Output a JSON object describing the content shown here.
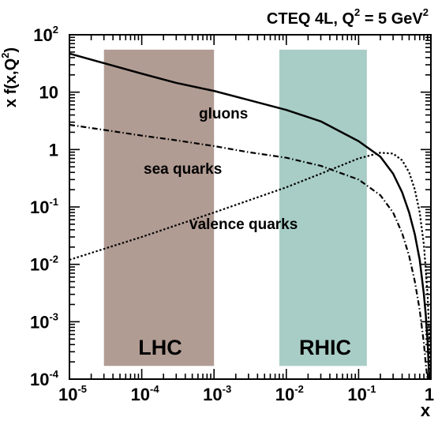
{
  "chart_data": {
    "type": "line",
    "title": {
      "main": "CTEQ 4L,  Q",
      "sup1": "2",
      "mid": " = 5 GeV",
      "sup2": "2"
    },
    "ylabel": {
      "main": "x f(x,Q",
      "sup": "2",
      "end": ")"
    },
    "xlabel": "x",
    "xscale": "log",
    "yscale": "log",
    "xlim": [
      1e-05,
      1
    ],
    "ylim": [
      0.0001,
      100
    ],
    "x_tick_labels": [
      {
        "base": "10",
        "exp": "-5"
      },
      {
        "base": "10",
        "exp": "-4"
      },
      {
        "base": "10",
        "exp": "-3"
      },
      {
        "base": "10",
        "exp": "-2"
      },
      {
        "base": "10",
        "exp": "-1"
      },
      {
        "base": "1",
        "exp": ""
      }
    ],
    "y_tick_labels": [
      {
        "base": "10",
        "exp": "-4"
      },
      {
        "base": "10",
        "exp": "-3"
      },
      {
        "base": "10",
        "exp": "-2"
      },
      {
        "base": "10",
        "exp": "-1"
      },
      {
        "base": "1",
        "exp": ""
      },
      {
        "base": "10",
        "exp": ""
      },
      {
        "base": "10",
        "exp": "2"
      }
    ],
    "bands": [
      {
        "label": "LHC",
        "x_range": [
          3e-05,
          0.001
        ],
        "color": "#b19c93"
      },
      {
        "label": "RHIC",
        "x_range": [
          0.008,
          0.13
        ],
        "color": "#a8cdc6"
      }
    ],
    "band_y_range": [
      0.00017,
      55
    ],
    "series": [
      {
        "name": "gluons",
        "style": "solid",
        "x": [
          1e-05,
          3e-05,
          0.0001,
          0.0003,
          0.001,
          0.003,
          0.01,
          0.03,
          0.1,
          0.2,
          0.3,
          0.4,
          0.5,
          0.6,
          0.7,
          0.8,
          0.85,
          0.9,
          0.95
        ],
        "y": [
          47,
          32,
          21,
          14.5,
          10.5,
          7.3,
          4.9,
          3.1,
          1.4,
          0.75,
          0.38,
          0.18,
          0.08,
          0.033,
          0.012,
          0.003,
          0.0013,
          0.00045,
          0.0001
        ]
      },
      {
        "name": "sea quarks",
        "style": "dash-dot",
        "x": [
          1e-05,
          3e-05,
          0.0001,
          0.0003,
          0.001,
          0.003,
          0.01,
          0.03,
          0.1,
          0.2,
          0.3,
          0.4,
          0.5,
          0.6,
          0.7,
          0.8,
          0.85,
          0.9
        ],
        "y": [
          2.7,
          2.2,
          1.75,
          1.45,
          1.15,
          0.9,
          0.72,
          0.52,
          0.3,
          0.16,
          0.08,
          0.035,
          0.014,
          0.005,
          0.0016,
          0.00042,
          0.00018,
          0.0001
        ]
      },
      {
        "name": "valence quarks",
        "style": "dotted",
        "x": [
          1e-05,
          0.0001,
          0.001,
          0.01,
          0.03,
          0.1,
          0.2,
          0.3,
          0.4,
          0.5,
          0.6,
          0.7,
          0.8,
          0.9,
          0.95,
          0.98
        ],
        "y": [
          0.012,
          0.03,
          0.08,
          0.22,
          0.38,
          0.7,
          0.88,
          0.85,
          0.65,
          0.4,
          0.2,
          0.08,
          0.022,
          0.003,
          0.0006,
          0.0001
        ]
      }
    ],
    "colors": {
      "curve": "#000000",
      "frame": "#000000"
    }
  }
}
